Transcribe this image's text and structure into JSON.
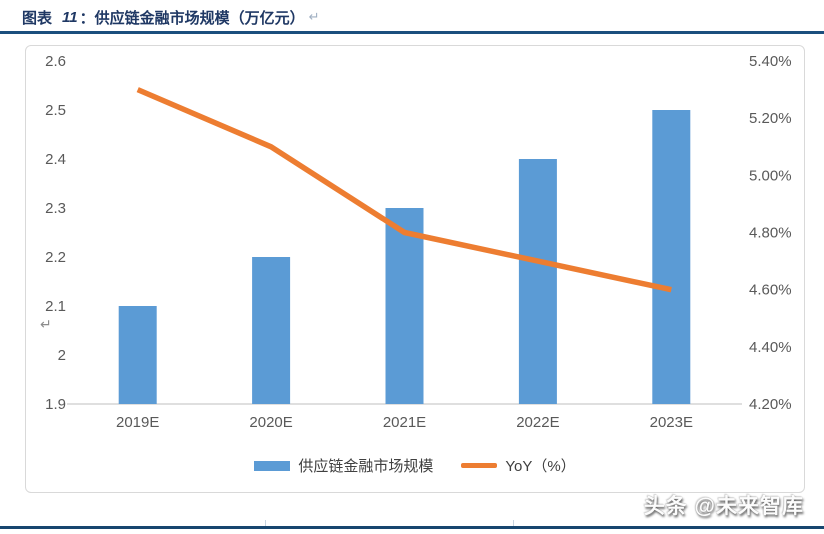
{
  "header": {
    "label": "图表",
    "number": "11",
    "separator": "：",
    "title": "供应链金融市场规模（万亿元）",
    "return_mark": "↵"
  },
  "chart_data": {
    "type": "combo-bar-line",
    "title": "供应链金融市场规模（万亿元）",
    "categories": [
      "2019E",
      "2020E",
      "2021E",
      "2022E",
      "2023E"
    ],
    "series": [
      {
        "name": "供应链金融市场规模",
        "type": "bar",
        "axis": "left",
        "color": "#5B9BD5",
        "values": [
          2.1,
          2.2,
          2.3,
          2.4,
          2.5
        ]
      },
      {
        "name": "YoY（%）",
        "type": "line",
        "axis": "right",
        "color": "#ED7D31",
        "values": [
          5.3,
          5.1,
          4.8,
          4.7,
          4.6
        ]
      }
    ],
    "left_axis": {
      "min": 1.9,
      "max": 2.6,
      "ticks": [
        {
          "label": "2.6",
          "v": 2.6
        },
        {
          "label": "2.5",
          "v": 2.5
        },
        {
          "label": "2.4",
          "v": 2.4
        },
        {
          "label": "2.3",
          "v": 2.3
        },
        {
          "label": "2.2",
          "v": 2.2
        },
        {
          "label": "2.1",
          "v": 2.1
        },
        {
          "label": "2",
          "v": 2.0
        },
        {
          "label": "1.9",
          "v": 1.9
        }
      ]
    },
    "right_axis": {
      "min": 4.2,
      "max": 5.4,
      "ticks": [
        {
          "label": "5.40%",
          "v": 5.4
        },
        {
          "label": "5.20%",
          "v": 5.2
        },
        {
          "label": "5.00%",
          "v": 5.0
        },
        {
          "label": "4.80%",
          "v": 4.8
        },
        {
          "label": "4.60%",
          "v": 4.6
        },
        {
          "label": "4.40%",
          "v": 4.4
        },
        {
          "label": "4.20%",
          "v": 4.2
        }
      ]
    },
    "grid": false,
    "legend_position": "bottom",
    "axis_return_mark": "↵"
  },
  "watermark": "头条 @未来智库",
  "colors": {
    "title_text": "#1F3864",
    "top_rule": "#1B4F7E",
    "bottom_rule": "#17466F",
    "axis_text": "#595959",
    "axis_line": "#BFBFBF",
    "box_border": "#D9D9D9",
    "bar": "#5B9BD5",
    "line": "#ED7D31",
    "return_mark": "#8C8C8C"
  }
}
